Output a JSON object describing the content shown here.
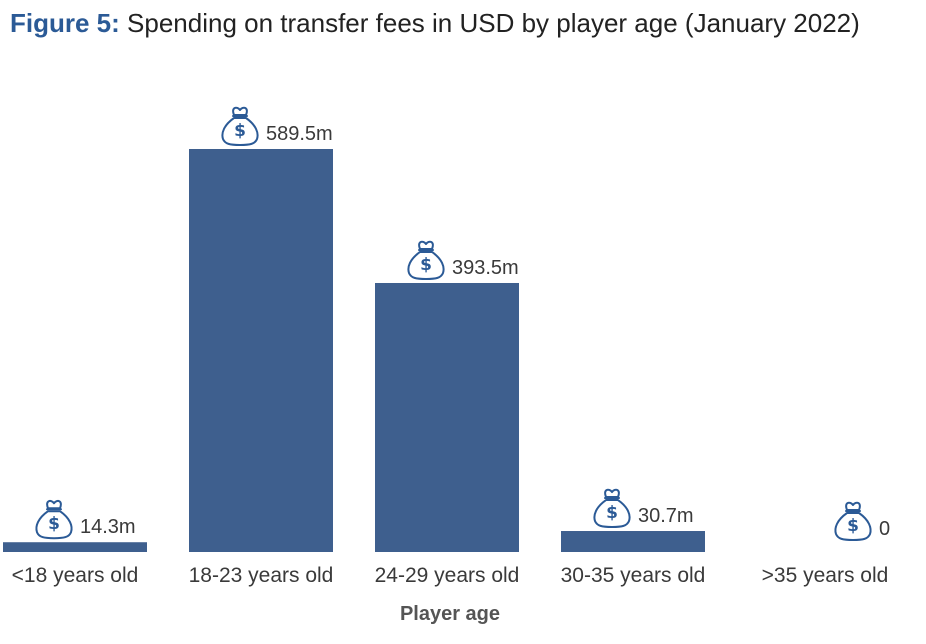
{
  "figure": {
    "number_label": "Figure 5:",
    "title_text": "Spending on transfer fees in USD by player age (January 2022)"
  },
  "colors": {
    "bar": "#3e5f8e",
    "title_accent": "#2b5a96",
    "icon": "#2b5a96"
  },
  "chart_data": {
    "type": "bar",
    "title": "Spending on transfer fees in USD by player age (January 2022)",
    "xlabel": "Player age",
    "ylabel": "",
    "categories": [
      "<18 years old",
      "18-23 years old",
      "24-29 years old",
      "30-35 years old",
      ">35 years old"
    ],
    "values": [
      14.3,
      589.5,
      393.5,
      30.7,
      0
    ],
    "value_labels": [
      "14.3m",
      "589.5m",
      "393.5m",
      "30.7m",
      "0"
    ],
    "value_icon": "money-bag-icon",
    "grid": false,
    "legend": "none"
  }
}
